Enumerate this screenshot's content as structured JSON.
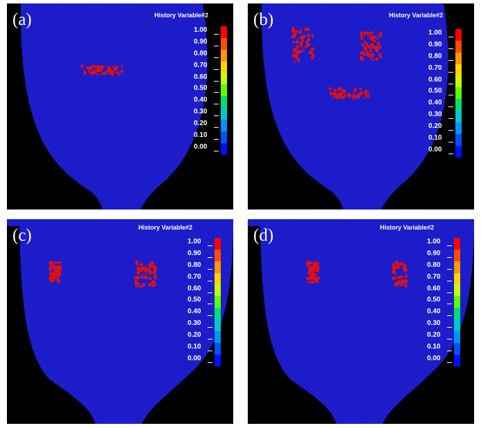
{
  "panels": [
    {
      "label": "(a)",
      "legend_title": "History Variable#2",
      "damage": [
        {
          "cx": 138,
          "cy": 97,
          "w": 60,
          "h": 14
        }
      ]
    },
    {
      "label": "(b)",
      "legend_title": "History Variable#2",
      "damage": [
        {
          "cx": 80,
          "cy": 60,
          "w": 30,
          "h": 50
        },
        {
          "cx": 178,
          "cy": 62,
          "w": 30,
          "h": 40
        },
        {
          "cx": 145,
          "cy": 130,
          "w": 60,
          "h": 14
        }
      ]
    },
    {
      "label": "(c)",
      "legend_title": "History Variable#2",
      "damage": [
        {
          "cx": 70,
          "cy": 77,
          "w": 16,
          "h": 30
        },
        {
          "cx": 200,
          "cy": 80,
          "w": 30,
          "h": 36
        }
      ]
    },
    {
      "label": "(d)",
      "legend_title": "History Variable#2",
      "damage": [
        {
          "cx": 94,
          "cy": 77,
          "w": 16,
          "h": 30
        },
        {
          "cx": 220,
          "cy": 80,
          "w": 20,
          "h": 36
        }
      ]
    }
  ],
  "legend": {
    "labels": [
      "1.00",
      "0.90",
      "0.80",
      "0.70",
      "0.60",
      "0.50",
      "0.40",
      "0.30",
      "0.20",
      "0.10",
      "0.00"
    ],
    "colors": [
      "#ff0000",
      "#ff4d00",
      "#ff9500",
      "#ffd400",
      "#c8ff00",
      "#5cff00",
      "#00e070",
      "#00c8c8",
      "#0094ff",
      "#0050ff",
      "#0010ff"
    ]
  },
  "colors": {
    "mesh": "#1f1fd6",
    "background": "#000000",
    "damage": "#e01010"
  }
}
